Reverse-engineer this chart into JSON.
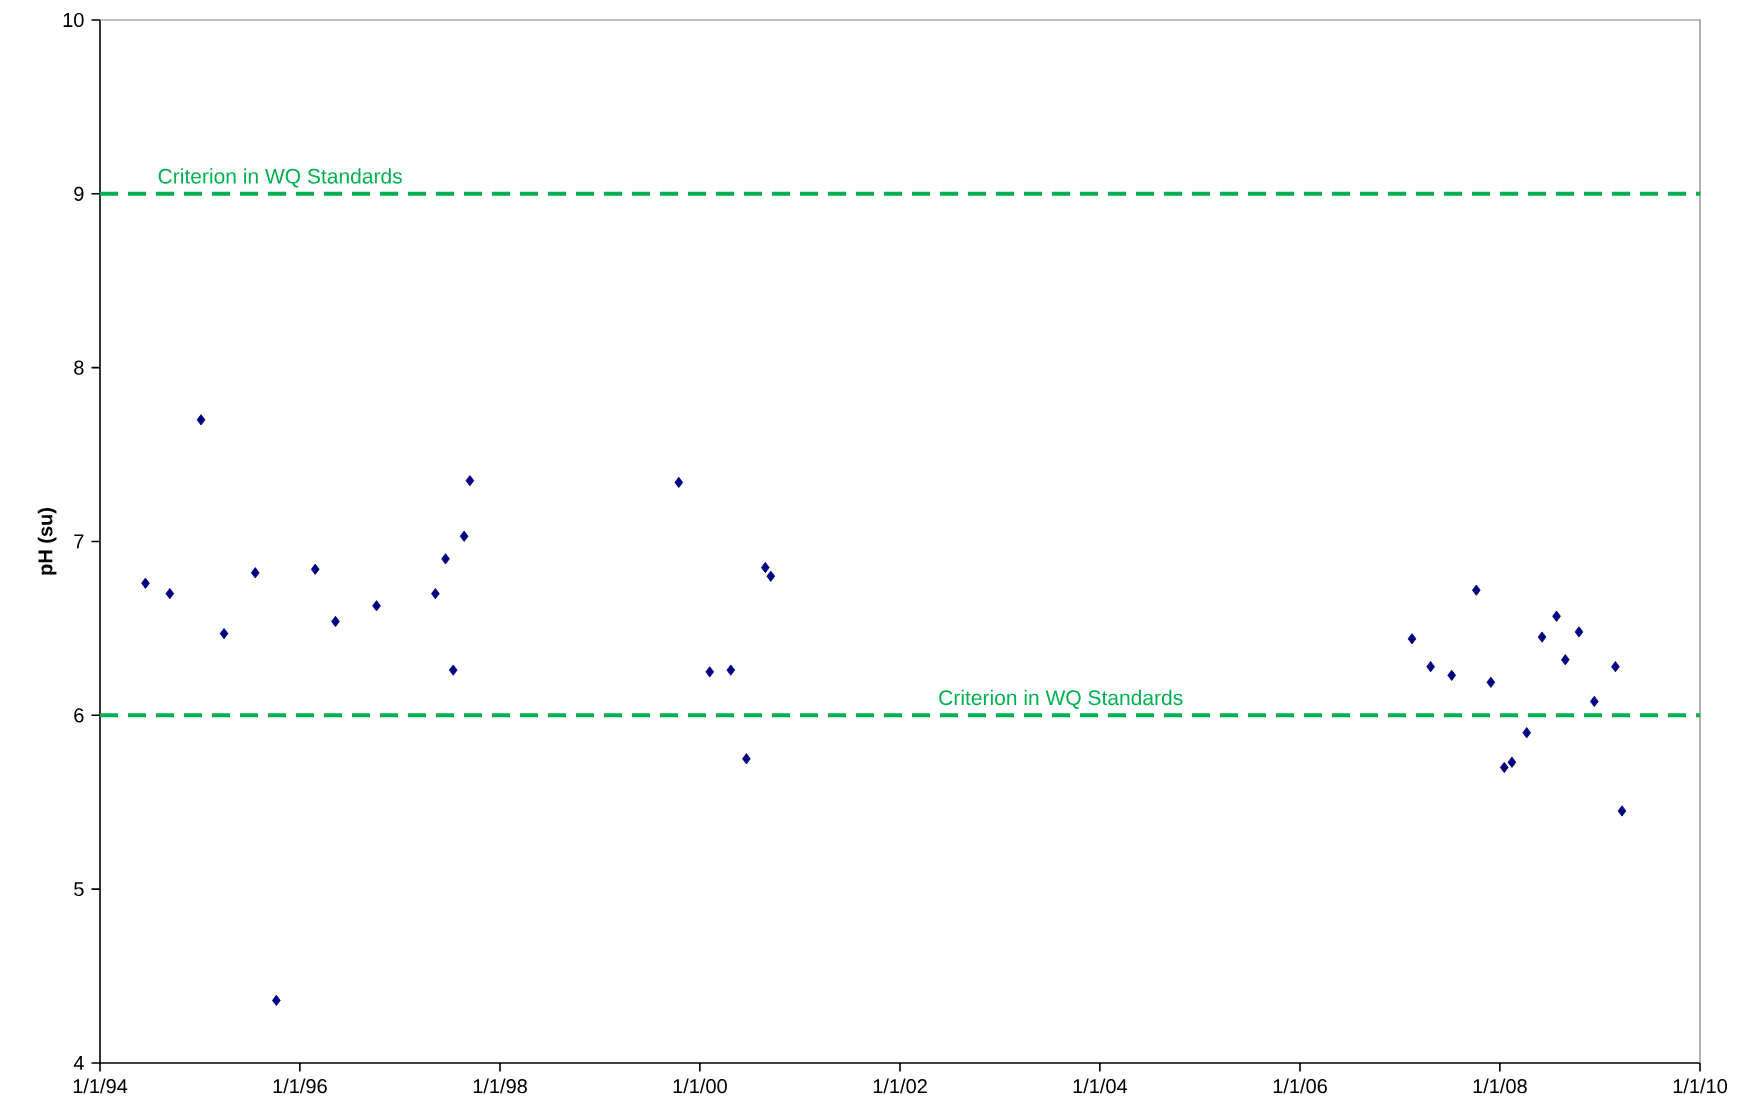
{
  "chart_data": {
    "type": "scatter",
    "ylabel": "pH (su)",
    "marker": "diamond",
    "color": "#000080",
    "x": [
      "1994-06-16",
      "1994-09-13",
      "1995-01-05",
      "1995-03-30",
      "1995-07-22",
      "1995-10-07",
      "1996-02-26",
      "1996-05-10",
      "1996-10-07",
      "1997-05-10",
      "1997-06-16",
      "1997-07-14",
      "1997-08-23",
      "1997-09-13",
      "1999-10-16",
      "2000-02-06",
      "2000-04-23",
      "2000-06-19",
      "2000-08-27",
      "2000-09-16",
      "2007-02-14",
      "2007-04-23",
      "2007-07-09",
      "2007-10-07",
      "2007-11-29",
      "2008-01-17",
      "2008-02-14",
      "2008-04-08",
      "2008-06-03",
      "2008-07-26",
      "2008-08-27",
      "2008-10-16",
      "2008-12-11",
      "2009-02-26",
      "2009-03-22"
    ],
    "values": [
      6.76,
      6.7,
      7.7,
      6.47,
      6.82,
      4.36,
      6.84,
      6.54,
      6.63,
      6.7,
      6.9,
      6.26,
      7.03,
      7.35,
      7.34,
      6.25,
      6.26,
      5.75,
      6.85,
      6.8,
      6.44,
      6.28,
      6.23,
      6.72,
      6.19,
      5.7,
      5.73,
      5.9,
      6.45,
      6.57,
      6.32,
      6.48,
      6.08,
      6.28,
      5.45
    ],
    "xlim": [
      "1994-01-01",
      "2010-01-01"
    ],
    "xticks": [
      {
        "value": "1994-01-01",
        "label": "1/1/94"
      },
      {
        "value": "1996-01-01",
        "label": "1/1/96"
      },
      {
        "value": "1998-01-01",
        "label": "1/1/98"
      },
      {
        "value": "2000-01-01",
        "label": "1/1/00"
      },
      {
        "value": "2002-01-01",
        "label": "1/1/02"
      },
      {
        "value": "2004-01-01",
        "label": "1/1/04"
      },
      {
        "value": "2006-01-01",
        "label": "1/1/06"
      },
      {
        "value": "2008-01-01",
        "label": "1/1/08"
      },
      {
        "value": "2010-01-01",
        "label": "1/1/10"
      }
    ],
    "ylim": [
      4,
      10
    ],
    "yticks": [
      4,
      5,
      6,
      7,
      8,
      9,
      10
    ],
    "ref_lines": [
      {
        "axis": "y",
        "value": 9,
        "label": "Criterion in WQ Standards",
        "color": "#00b050",
        "line_style": "dashed"
      },
      {
        "axis": "y",
        "value": 6,
        "label": "Criterion in WQ Standards",
        "color": "#00b050",
        "line_style": "dashed"
      }
    ]
  }
}
